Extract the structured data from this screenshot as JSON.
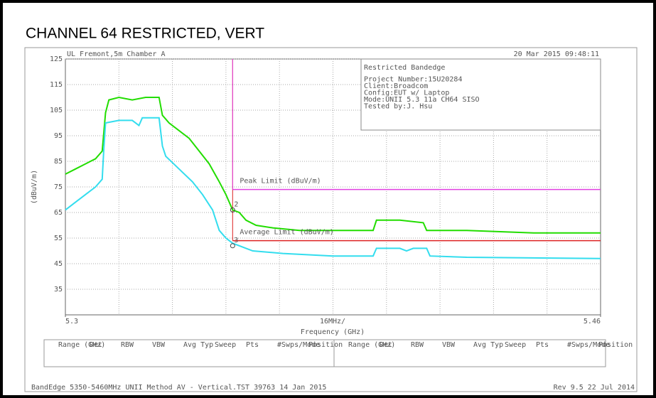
{
  "chart_data": {
    "type": "line",
    "title": "CHANNEL 64 RESTRICTED, VERT",
    "header_left": "UL Fremont,5m Chamber A",
    "header_right": "20 Mar 2015   09:48:11",
    "ylabel": "(dBuV/m)",
    "xlabel": "Frequency (GHz)",
    "x_annotation": "16MHz/",
    "xlim": [
      5.3,
      5.46
    ],
    "xticks": [
      5.3,
      5.46
    ],
    "ylim": [
      25,
      125
    ],
    "yticks": [
      35,
      45,
      55,
      65,
      75,
      85,
      95,
      105,
      115,
      125
    ],
    "grid": true,
    "x_divisions": 10,
    "info_box": [
      "Restricted Bandedge",
      "Project Number:15U20284",
      "Client:Broadcom",
      "Config:EUT w/ Laptop",
      "Mode:UNII 5.3 11a CH64 SISO",
      "Tested by:J. Hsu"
    ],
    "series": [
      {
        "name": "Peak",
        "color": "#22dd00",
        "x": [
          5.3,
          5.303,
          5.306,
          5.309,
          5.311,
          5.312,
          5.313,
          5.316,
          5.32,
          5.324,
          5.328,
          5.329,
          5.331,
          5.334,
          5.337,
          5.34,
          5.343,
          5.346,
          5.348,
          5.35,
          5.352,
          5.354,
          5.357,
          5.362,
          5.37,
          5.38,
          5.392,
          5.393,
          5.4,
          5.407,
          5.408,
          5.42,
          5.44,
          5.46
        ],
        "values": [
          80,
          82,
          84,
          86,
          89,
          104,
          109,
          110,
          109,
          110,
          110,
          103,
          100,
          97,
          94,
          89,
          84,
          77,
          72,
          66,
          65,
          62,
          60,
          59,
          58,
          58,
          58,
          62,
          62,
          61,
          58,
          58,
          57,
          57
        ]
      },
      {
        "name": "Average",
        "color": "#33ddee",
        "x": [
          5.3,
          5.303,
          5.306,
          5.309,
          5.311,
          5.3115,
          5.312,
          5.316,
          5.32,
          5.322,
          5.323,
          5.328,
          5.329,
          5.33,
          5.334,
          5.338,
          5.341,
          5.344,
          5.346,
          5.348,
          5.35,
          5.356,
          5.365,
          5.38,
          5.392,
          5.393,
          5.4,
          5.402,
          5.404,
          5.408,
          5.409,
          5.42,
          5.46
        ],
        "values": [
          66,
          69,
          72,
          75,
          78,
          90,
          100,
          101,
          101,
          99,
          102,
          102,
          91,
          87,
          82,
          77,
          72,
          66,
          58,
          55,
          53,
          50,
          49,
          48,
          48,
          51,
          51,
          50,
          51,
          51,
          48,
          47.5,
          47
        ]
      }
    ],
    "limits": [
      {
        "name": "Average Limit (dBuV/m)",
        "color": "#dd2222",
        "value": 54,
        "x": [
          5.35,
          5.46
        ]
      },
      {
        "name": "Peak Limit (dBuV/m)",
        "color": "#e040e0",
        "value": 74,
        "x": [
          5.35,
          5.46
        ]
      }
    ],
    "markers": [
      {
        "label": "2",
        "x": 5.35,
        "y": 66
      },
      {
        "label": "3",
        "x": 5.35,
        "y": 52
      }
    ],
    "table_headers": [
      "Range (GHz)",
      "Det",
      "RBW",
      "VBW",
      "Avg Typ",
      "Sweep",
      "Pts",
      "#Swps/Mode",
      "Position"
    ],
    "footer_left": "BandEdge 5350-5460MHz UNII Method AV - Vertical.TST 39763 14 Jan 2015",
    "footer_right": "Rev 9.5 22 Jul 2014"
  }
}
